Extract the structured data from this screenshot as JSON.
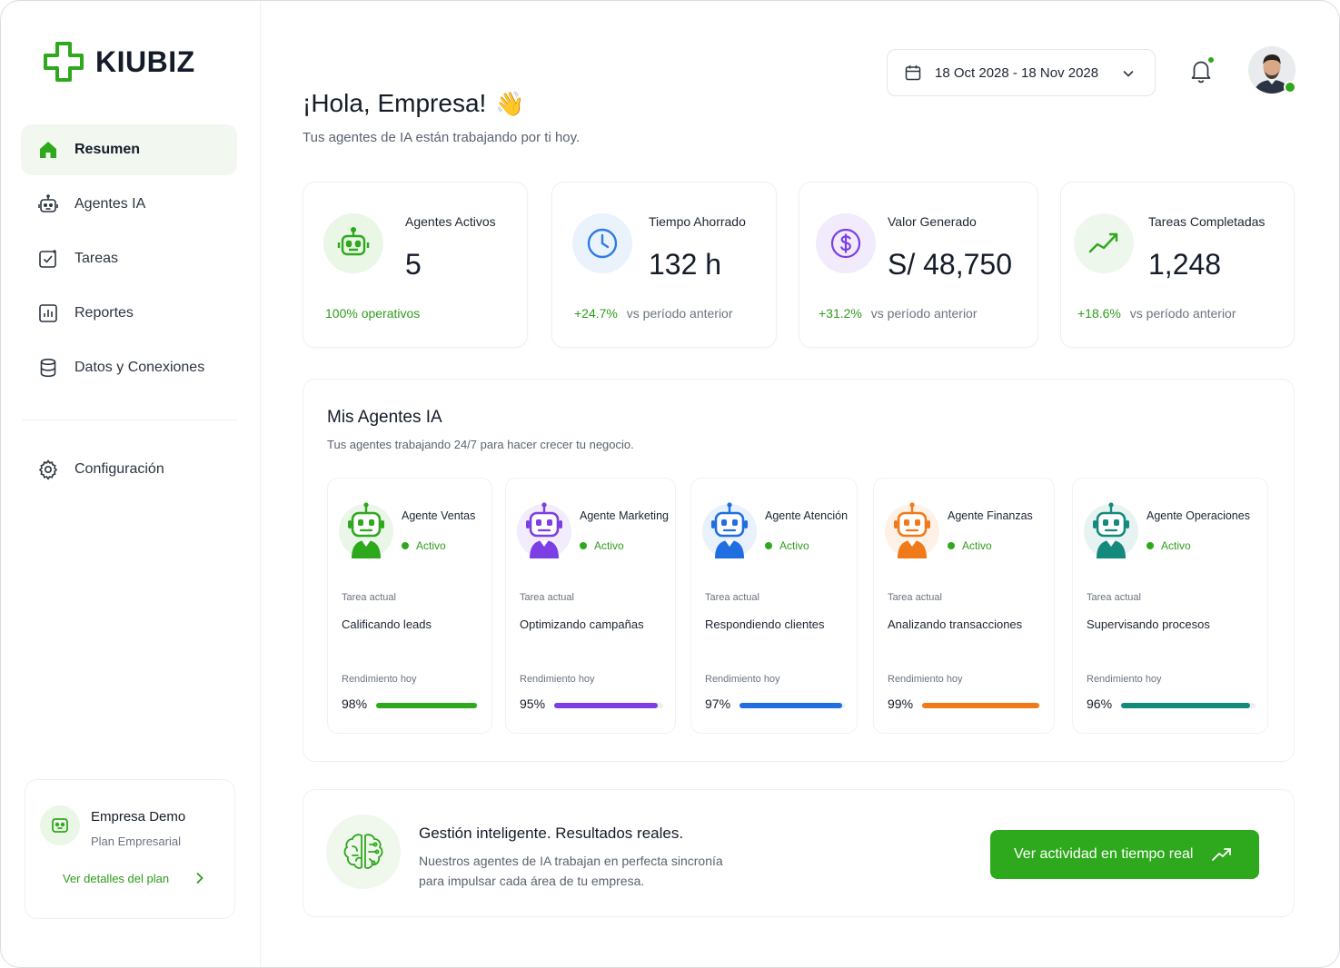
{
  "brand": {
    "name": "KIUBIZ",
    "accent": "#2ea81c"
  },
  "sidebar": {
    "items": [
      {
        "label": "Resumen",
        "icon": "home-icon",
        "active": true
      },
      {
        "label": "Agentes IA",
        "icon": "robot-icon"
      },
      {
        "label": "Tareas",
        "icon": "checkbox-icon"
      },
      {
        "label": "Reportes",
        "icon": "bar-chart-icon"
      },
      {
        "label": "Datos y Conexiones",
        "icon": "database-icon"
      }
    ],
    "config_label": "Configuración",
    "plan": {
      "name": "Empresa Demo",
      "plan": "Plan Empresarial",
      "link": "Ver detalles del plan"
    }
  },
  "header": {
    "date_range": "18 Oct 2028 - 18 Nov 2028",
    "greeting": "¡Hola, Empresa!",
    "wave": "👋",
    "subtitle": "Tus agentes de IA están trabajando por ti hoy."
  },
  "stats": [
    {
      "label": "Agentes Activos",
      "value": "5",
      "foot_pos": "100% operativos",
      "foot_rest": "",
      "icon": "robot-icon",
      "color": "#2ea81c",
      "bg": "#eaf6e6"
    },
    {
      "label": "Tiempo Ahorrado",
      "value": "132 h",
      "foot_pos": "+24.7%",
      "foot_rest": "vs período anterior",
      "icon": "clock-icon",
      "color": "#2f7be5",
      "bg": "#eaf2fc"
    },
    {
      "label": "Valor Generado",
      "value": "S/ 48,750",
      "foot_pos": "+31.2%",
      "foot_rest": "vs período anterior",
      "icon": "dollar-icon",
      "color": "#7b3fe4",
      "bg": "#f1ebfc"
    },
    {
      "label": "Tareas Completadas",
      "value": "1,248",
      "foot_pos": "+18.6%",
      "foot_rest": "vs período anterior",
      "icon": "trend-up-icon",
      "color": "#2ea81c",
      "bg": "#eef7eb"
    }
  ],
  "agents_section": {
    "title": "Mis Agentes IA",
    "subtitle": "Tus agentes trabajando 24/7 para hacer crecer tu negocio.",
    "task_label": "Tarea actual",
    "perf_label": "Rendimiento hoy",
    "agents": [
      {
        "name": "Agente Ventas",
        "status": "Activo",
        "task": "Calificando leads",
        "perf": 98,
        "perf_text": "98%",
        "color": "#2ea81c"
      },
      {
        "name": "Agente Marketing",
        "status": "Activo",
        "task": "Optimizando campañas",
        "perf": 95,
        "perf_text": "95%",
        "color": "#7b3fe4"
      },
      {
        "name": "Agente Atención",
        "status": "Activo",
        "task": "Respondiendo clientes",
        "perf": 97,
        "perf_text": "97%",
        "color": "#1f6fe0"
      },
      {
        "name": "Agente Finanzas",
        "status": "Activo",
        "task": "Analizando transacciones",
        "perf": 99,
        "perf_text": "99%",
        "color": "#f07a1a"
      },
      {
        "name": "Agente Operaciones",
        "status": "Activo",
        "task": "Supervisando procesos",
        "perf": 96,
        "perf_text": "96%",
        "color": "#138a7c"
      }
    ]
  },
  "banner": {
    "title": "Gestión inteligente. Resultados reales.",
    "text_line1": "Nuestros agentes de IA trabajan en perfecta sincronía",
    "text_line2": "para impulsar cada área de tu empresa.",
    "cta": "Ver actividad en tiempo real"
  }
}
